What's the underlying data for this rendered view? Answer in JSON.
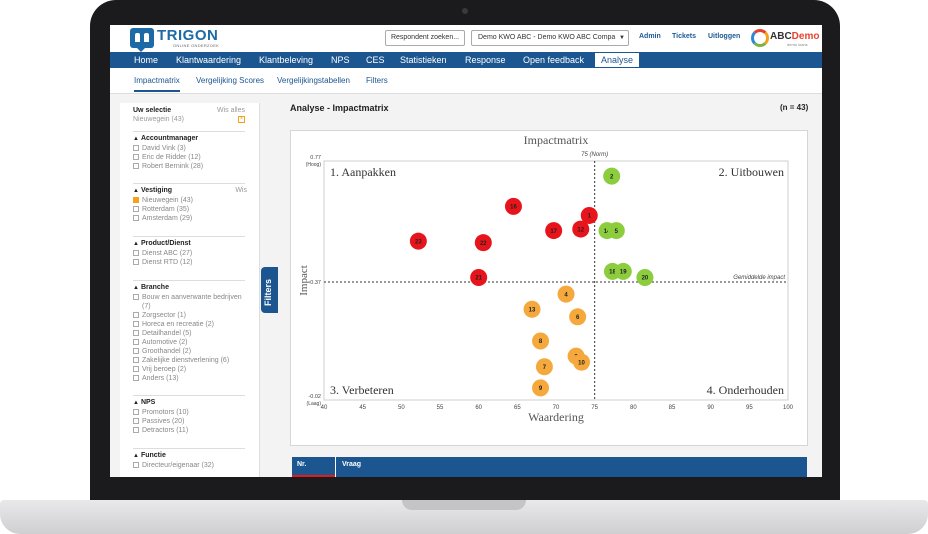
{
  "topbar": {
    "logo_text": "TRIGON",
    "logo_sub": "ONLINE ONDERZOEK",
    "respondent_button": "Respondent zoeken...",
    "demo_select": "Demo KWO ABC - Demo KWO ABC Compa",
    "links": [
      "Admin",
      "Tickets",
      "Uitloggen"
    ],
    "client_logo_text_a": "ABC",
    "client_logo_text_b": "Demo",
    "client_logo_sub": "demo loans"
  },
  "nav": {
    "items": [
      "Home",
      "Klantwaardering",
      "Klantbeleving",
      "NPS",
      "CES",
      "Statistieken",
      "Response",
      "Open feedback",
      "Analyse"
    ],
    "active": "Analyse"
  },
  "subnav": {
    "items": [
      "Impactmatrix",
      "Vergelijking Scores",
      "Vergelijkingstabellen",
      "Filters"
    ],
    "active": "Impactmatrix"
  },
  "sidebar": {
    "selection_title": "Uw selectie",
    "selection_clear": "Wis alles",
    "selection_value": "Nieuwegein (43)",
    "filters_tab": "Filters",
    "groups": [
      {
        "title": "Accountmanager",
        "clear": "",
        "items": [
          {
            "label": "David Vink (3)",
            "checked": false
          },
          {
            "label": "Eric de Ridder (12)",
            "checked": false
          },
          {
            "label": "Robert Bernink (28)",
            "checked": false
          }
        ]
      },
      {
        "title": "Vestiging",
        "clear": "Wis",
        "items": [
          {
            "label": "Nieuwegein (43)",
            "checked": true
          },
          {
            "label": "Rotterdam (35)",
            "checked": false
          },
          {
            "label": "Amsterdam (29)",
            "checked": false
          }
        ]
      },
      {
        "title": "Product/Dienst",
        "clear": "",
        "items": [
          {
            "label": "Dienst ABC (27)",
            "checked": false
          },
          {
            "label": "Dienst RTD (12)",
            "checked": false
          }
        ]
      },
      {
        "title": "Branche",
        "clear": "",
        "items": [
          {
            "label": "Bouw en aanverwante bedrijven",
            "checked": false
          },
          {
            "label": "(7)",
            "checked": null
          },
          {
            "label": "Zorgsector (1)",
            "checked": false
          },
          {
            "label": "Horeca en recreatie (2)",
            "checked": false
          },
          {
            "label": "Detailhandel (5)",
            "checked": false
          },
          {
            "label": "Automotive (2)",
            "checked": false
          },
          {
            "label": "Groothandel (2)",
            "checked": false
          },
          {
            "label": "Zakelijke dienstverlening (6)",
            "checked": false
          },
          {
            "label": "Vrij beroep (2)",
            "checked": false
          },
          {
            "label": "Anders (13)",
            "checked": false
          }
        ]
      },
      {
        "title": "NPS",
        "clear": "",
        "items": [
          {
            "label": "Promotors (10)",
            "checked": false
          },
          {
            "label": "Passives (20)",
            "checked": false
          },
          {
            "label": "Detractors (11)",
            "checked": false
          }
        ]
      },
      {
        "title": "Functie",
        "clear": "",
        "items": [
          {
            "label": "Directeur/eigenaar (32)",
            "checked": false
          }
        ]
      }
    ]
  },
  "content": {
    "title": "Analyse - Impactmatrix",
    "n": "(n = 43)"
  },
  "colors": {
    "red": "#e8141b",
    "orange": "#f5a93c",
    "green": "#8ccd3e",
    "nav": "#1c5690"
  },
  "chart_data": {
    "type": "scatter",
    "title": "Impactmatrix",
    "xlabel": "Waardering",
    "ylabel": "Impact",
    "xlim": [
      40,
      100
    ],
    "ylim": [
      -0.02,
      0.77
    ],
    "xticks": [
      40,
      45,
      50,
      55,
      60,
      65,
      70,
      75,
      80,
      85,
      90,
      95,
      100
    ],
    "y_top_label": "0.77",
    "y_top_sub": "(Hoog)",
    "y_bottom_label": "-0.02",
    "y_bottom_sub": "(Laag)",
    "y_mid_label": "0.37",
    "x_norm": 75,
    "x_norm_label": "75 (Norm)",
    "y_avg": 0.37,
    "y_avg_label": "Gemiddelde impact",
    "quadrants": [
      "1. Aanpakken",
      "2. Uitbouwen",
      "3. Verbeteren",
      "4. Onderhouden"
    ],
    "points": [
      {
        "label": "2",
        "x": 77.2,
        "y": 0.72,
        "color": "green"
      },
      {
        "label": "16",
        "x": 64.5,
        "y": 0.62,
        "color": "red"
      },
      {
        "label": "1",
        "x": 74.3,
        "y": 0.59,
        "color": "red"
      },
      {
        "label": "17",
        "x": 69.7,
        "y": 0.54,
        "color": "red"
      },
      {
        "label": "12",
        "x": 73.2,
        "y": 0.545,
        "color": "red"
      },
      {
        "label": "14",
        "x": 76.6,
        "y": 0.54,
        "color": "green"
      },
      {
        "label": "5",
        "x": 77.8,
        "y": 0.54,
        "color": "green"
      },
      {
        "label": "23",
        "x": 52.2,
        "y": 0.505,
        "color": "red"
      },
      {
        "label": "22",
        "x": 60.6,
        "y": 0.5,
        "color": "red"
      },
      {
        "label": "18",
        "x": 77.3,
        "y": 0.405,
        "color": "green"
      },
      {
        "label": "19",
        "x": 78.7,
        "y": 0.405,
        "color": "green"
      },
      {
        "label": "20",
        "x": 81.5,
        "y": 0.385,
        "color": "green"
      },
      {
        "label": "21",
        "x": 60.0,
        "y": 0.385,
        "color": "red"
      },
      {
        "label": "4",
        "x": 71.3,
        "y": 0.33,
        "color": "orange"
      },
      {
        "label": "13",
        "x": 66.9,
        "y": 0.28,
        "color": "orange"
      },
      {
        "label": "6",
        "x": 72.8,
        "y": 0.255,
        "color": "orange"
      },
      {
        "label": "8",
        "x": 68.0,
        "y": 0.175,
        "color": "orange"
      },
      {
        "label": "3",
        "x": 72.6,
        "y": 0.125,
        "color": "orange"
      },
      {
        "label": "10",
        "x": 73.3,
        "y": 0.105,
        "color": "orange"
      },
      {
        "label": "7",
        "x": 68.5,
        "y": 0.09,
        "color": "orange"
      },
      {
        "label": "9",
        "x": 68.0,
        "y": 0.02,
        "color": "orange"
      }
    ]
  },
  "table": {
    "col_nr": "Nr.",
    "col_vraag": "Vraag"
  }
}
